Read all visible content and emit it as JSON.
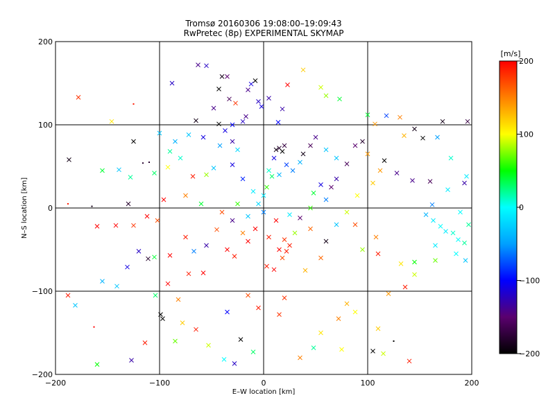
{
  "chart_data": {
    "type": "scatter",
    "title": "Tromsø 20160306 19:08:00–19:09:43",
    "subtitle": "RwPretec (8p) EXPERIMENTAL SKYMAP",
    "xlabel": "E–W location [km]",
    "ylabel": "N–S location [km]",
    "xlim": [
      -200,
      200
    ],
    "ylim": [
      -200,
      200
    ],
    "xticks": [
      -200,
      -100,
      0,
      100,
      200
    ],
    "yticks": [
      -200,
      -100,
      0,
      100,
      200
    ],
    "xtick_labels": [
      "−200",
      "−100",
      "0",
      "100",
      "200"
    ],
    "ytick_labels": [
      "−200",
      "−100",
      "0",
      "100",
      "200"
    ],
    "grid": true,
    "colorbar": {
      "unit_label": "[m/s]",
      "range": [
        -200,
        200
      ],
      "ticks": [
        200,
        100,
        0,
        -100,
        -200
      ],
      "tick_labels": [
        "200",
        "100",
        "0",
        "−100",
        "−200"
      ],
      "colormap": [
        "#000000",
        "#5a006e",
        "#0000ff",
        "#00a0ff",
        "#00ffff",
        "#00ff00",
        "#ffff00",
        "#ff8000",
        "#ff0000"
      ]
    },
    "points": [
      [
        -178,
        133,
        180,
        "x"
      ],
      [
        -146,
        104,
        110,
        "x"
      ],
      [
        -125,
        125,
        190,
        "+"
      ],
      [
        -187,
        58,
        -190,
        "x"
      ],
      [
        -165,
        2,
        -190,
        "+"
      ],
      [
        -188,
        5,
        190,
        "+"
      ],
      [
        -155,
        45,
        40,
        "x"
      ],
      [
        -139,
        46,
        -30,
        "x"
      ],
      [
        -130,
        5,
        -180,
        "x"
      ],
      [
        -128,
        37,
        20,
        "x"
      ],
      [
        -105,
        42,
        30,
        "x"
      ],
      [
        -116,
        54,
        -180,
        "+"
      ],
      [
        -110,
        55,
        -180,
        "+"
      ],
      [
        -92,
        49,
        100,
        "x"
      ],
      [
        -96,
        10,
        200,
        "x"
      ],
      [
        -160,
        -22,
        200,
        "x"
      ],
      [
        -142,
        -21,
        200,
        "x"
      ],
      [
        -125,
        -21,
        180,
        "x"
      ],
      [
        -112,
        -10,
        200,
        "x"
      ],
      [
        -102,
        -15,
        170,
        "x"
      ],
      [
        -120,
        -52,
        -120,
        "x"
      ],
      [
        -111,
        -61,
        -180,
        "x"
      ],
      [
        -105,
        -59,
        40,
        "x"
      ],
      [
        -131,
        -71,
        -110,
        "x"
      ],
      [
        -155,
        -88,
        -40,
        "x"
      ],
      [
        -141,
        -94,
        -30,
        "x"
      ],
      [
        -188,
        -105,
        190,
        "x"
      ],
      [
        -181,
        -117,
        -30,
        "x"
      ],
      [
        -163,
        -143,
        200,
        "+"
      ],
      [
        -114,
        -162,
        190,
        "x"
      ],
      [
        -127,
        -183,
        -130,
        "x"
      ],
      [
        -160,
        -188,
        50,
        "x"
      ],
      [
        -104,
        -105,
        30,
        "x"
      ],
      [
        -99,
        -128,
        -200,
        "x"
      ],
      [
        -97,
        -133,
        -200,
        "x"
      ],
      [
        -92,
        -91,
        200,
        "x"
      ],
      [
        -82,
        -110,
        150,
        "x"
      ],
      [
        -90,
        -57,
        200,
        "x"
      ],
      [
        -67,
        -52,
        -60,
        "x"
      ],
      [
        -75,
        -35,
        190,
        "x"
      ],
      [
        -72,
        -79,
        190,
        "x"
      ],
      [
        -55,
        -45,
        -130,
        "x"
      ],
      [
        -45,
        -26,
        170,
        "x"
      ],
      [
        -58,
        -78,
        200,
        "x"
      ],
      [
        -63,
        172,
        -140,
        "x"
      ],
      [
        -55,
        171,
        -120,
        "x"
      ],
      [
        -88,
        150,
        -120,
        "x"
      ],
      [
        -40,
        158,
        -190,
        "x"
      ],
      [
        -35,
        158,
        -150,
        "x"
      ],
      [
        -43,
        143,
        -200,
        "x"
      ],
      [
        -33,
        131,
        -160,
        "x"
      ],
      [
        -27,
        126,
        180,
        "x"
      ],
      [
        -15,
        142,
        -140,
        "x"
      ],
      [
        -12,
        149,
        -110,
        "x"
      ],
      [
        -8,
        153,
        -200,
        "x"
      ],
      [
        -5,
        128,
        -120,
        "x"
      ],
      [
        -2,
        122,
        -110,
        "x"
      ],
      [
        5,
        132,
        -130,
        "x"
      ],
      [
        -17,
        110,
        -140,
        "x"
      ],
      [
        -20,
        104,
        -120,
        "x"
      ],
      [
        -30,
        100,
        -100,
        "x"
      ],
      [
        -37,
        93,
        -110,
        "x"
      ],
      [
        -43,
        101,
        -200,
        "x"
      ],
      [
        14,
        103,
        -100,
        "x"
      ],
      [
        18,
        119,
        -130,
        "x"
      ],
      [
        23,
        148,
        200,
        "x"
      ],
      [
        38,
        166,
        120,
        "x"
      ],
      [
        55,
        145,
        90,
        "x"
      ],
      [
        60,
        135,
        80,
        "x"
      ],
      [
        73,
        131,
        40,
        "x"
      ],
      [
        100,
        112,
        40,
        "x"
      ],
      [
        118,
        111,
        -80,
        "x"
      ],
      [
        107,
        101,
        140,
        "x"
      ],
      [
        131,
        109,
        150,
        "x"
      ],
      [
        135,
        87,
        130,
        "x"
      ],
      [
        153,
        84,
        -200,
        "x"
      ],
      [
        145,
        95,
        -190,
        "x"
      ],
      [
        172,
        104,
        -190,
        "x"
      ],
      [
        167,
        85,
        -50,
        "x"
      ],
      [
        180,
        60,
        10,
        "x"
      ],
      [
        195,
        38,
        -10,
        "x"
      ],
      [
        196,
        104,
        -170,
        "x"
      ],
      [
        116,
        57,
        -200,
        "x"
      ],
      [
        128,
        42,
        -140,
        "x"
      ],
      [
        143,
        33,
        -140,
        "x"
      ],
      [
        160,
        32,
        -160,
        "x"
      ],
      [
        162,
        4,
        -60,
        "x"
      ],
      [
        177,
        22,
        -10,
        "x"
      ],
      [
        189,
        -5,
        0,
        "x"
      ],
      [
        193,
        30,
        -130,
        "x"
      ],
      [
        156,
        -8,
        -40,
        "x"
      ],
      [
        163,
        -15,
        -10,
        "x"
      ],
      [
        170,
        -22,
        0,
        "x"
      ],
      [
        175,
        -28,
        -10,
        "x"
      ],
      [
        182,
        -30,
        10,
        "x"
      ],
      [
        187,
        -38,
        0,
        "x"
      ],
      [
        193,
        -42,
        20,
        "x"
      ],
      [
        197,
        -20,
        20,
        "x"
      ],
      [
        165,
        -45,
        -10,
        "x"
      ],
      [
        185,
        -55,
        0,
        "x"
      ],
      [
        194,
        -63,
        -30,
        "x"
      ],
      [
        165,
        -63,
        70,
        "x"
      ],
      [
        145,
        -65,
        50,
        "x"
      ],
      [
        132,
        -67,
        110,
        "x"
      ],
      [
        145,
        -80,
        90,
        "x"
      ],
      [
        136,
        -95,
        190,
        "x"
      ],
      [
        120,
        -103,
        140,
        "x"
      ],
      [
        140,
        -184,
        190,
        "x"
      ],
      [
        110,
        -145,
        120,
        "x"
      ],
      [
        105,
        -172,
        -200,
        "x"
      ],
      [
        115,
        -175,
        90,
        "x"
      ],
      [
        125,
        -160,
        -200,
        "+"
      ],
      [
        88,
        -125,
        100,
        "x"
      ],
      [
        80,
        -115,
        130,
        "x"
      ],
      [
        72,
        -133,
        150,
        "x"
      ],
      [
        75,
        -170,
        100,
        "x"
      ],
      [
        55,
        -150,
        110,
        "x"
      ],
      [
        48,
        -168,
        20,
        "x"
      ],
      [
        35,
        -180,
        150,
        "x"
      ],
      [
        -10,
        -173,
        30,
        "x"
      ],
      [
        -28,
        -187,
        -120,
        "x"
      ],
      [
        -38,
        -182,
        0,
        "x"
      ],
      [
        -53,
        -165,
        90,
        "x"
      ],
      [
        -22,
        -158,
        -200,
        "x"
      ],
      [
        -65,
        -146,
        190,
        "x"
      ],
      [
        -78,
        -138,
        120,
        "x"
      ],
      [
        -85,
        -160,
        70,
        "x"
      ],
      [
        -35,
        -125,
        -100,
        "x"
      ],
      [
        -5,
        -120,
        190,
        "x"
      ],
      [
        15,
        -128,
        180,
        "x"
      ],
      [
        -15,
        -105,
        170,
        "x"
      ],
      [
        20,
        -108,
        180,
        "x"
      ],
      [
        10,
        -74,
        200,
        "x"
      ],
      [
        3,
        -70,
        190,
        "x"
      ],
      [
        18,
        -60,
        170,
        "x"
      ],
      [
        22,
        -52,
        190,
        "x"
      ],
      [
        15,
        -50,
        200,
        "x"
      ],
      [
        25,
        -45,
        190,
        "x"
      ],
      [
        20,
        -38,
        180,
        "x"
      ],
      [
        30,
        -30,
        80,
        "x"
      ],
      [
        -15,
        -40,
        200,
        "x"
      ],
      [
        -28,
        -58,
        190,
        "x"
      ],
      [
        -35,
        -50,
        200,
        "x"
      ],
      [
        -20,
        -30,
        150,
        "x"
      ],
      [
        -8,
        -25,
        200,
        "x"
      ],
      [
        5,
        -35,
        190,
        "x"
      ],
      [
        40,
        -75,
        130,
        "x"
      ],
      [
        55,
        -60,
        160,
        "x"
      ],
      [
        60,
        -40,
        -190,
        "x"
      ],
      [
        88,
        -20,
        170,
        "x"
      ],
      [
        95,
        -50,
        80,
        "x"
      ],
      [
        108,
        -35,
        150,
        "x"
      ],
      [
        110,
        -55,
        190,
        "x"
      ],
      [
        70,
        -20,
        -30,
        "x"
      ],
      [
        80,
        -5,
        90,
        "x"
      ],
      [
        90,
        15,
        100,
        "x"
      ],
      [
        105,
        30,
        120,
        "x"
      ],
      [
        112,
        45,
        140,
        "x"
      ],
      [
        100,
        65,
        140,
        "x"
      ],
      [
        95,
        80,
        -180,
        "x"
      ],
      [
        88,
        75,
        -150,
        "x"
      ],
      [
        80,
        53,
        -160,
        "x"
      ],
      [
        70,
        35,
        -130,
        "x"
      ],
      [
        65,
        25,
        -150,
        "x"
      ],
      [
        55,
        28,
        -110,
        "x"
      ],
      [
        60,
        10,
        -60,
        "x"
      ],
      [
        45,
        0,
        60,
        "x"
      ],
      [
        48,
        18,
        40,
        "x"
      ],
      [
        12,
        70,
        -190,
        "x"
      ],
      [
        15,
        72,
        -180,
        "x"
      ],
      [
        20,
        75,
        -170,
        "x"
      ],
      [
        18,
        68,
        -200,
        "x"
      ],
      [
        10,
        60,
        -110,
        "x"
      ],
      [
        5,
        45,
        10,
        "x"
      ],
      [
        8,
        38,
        30,
        "x"
      ],
      [
        15,
        40,
        -40,
        "x"
      ],
      [
        22,
        52,
        -80,
        "x"
      ],
      [
        28,
        45,
        -60,
        "x"
      ],
      [
        35,
        55,
        -40,
        "x"
      ],
      [
        38,
        65,
        -190,
        "x"
      ],
      [
        45,
        75,
        -160,
        "x"
      ],
      [
        50,
        85,
        -140,
        "x"
      ],
      [
        60,
        70,
        -30,
        "x"
      ],
      [
        70,
        60,
        -30,
        "x"
      ],
      [
        -5,
        5,
        -20,
        "x"
      ],
      [
        0,
        15,
        -10,
        "x"
      ],
      [
        3,
        25,
        60,
        "x"
      ],
      [
        -10,
        20,
        -10,
        "x"
      ],
      [
        -20,
        35,
        -90,
        "x"
      ],
      [
        -30,
        52,
        -110,
        "x"
      ],
      [
        -48,
        48,
        -30,
        "x"
      ],
      [
        -55,
        40,
        80,
        "x"
      ],
      [
        -68,
        38,
        190,
        "x"
      ],
      [
        -75,
        15,
        150,
        "x"
      ],
      [
        -60,
        5,
        40,
        "x"
      ],
      [
        -40,
        -5,
        170,
        "x"
      ],
      [
        -25,
        5,
        60,
        "x"
      ],
      [
        -30,
        -15,
        -140,
        "x"
      ],
      [
        -15,
        -10,
        -30,
        "x"
      ],
      [
        0,
        -5,
        -60,
        "x"
      ],
      [
        12,
        -15,
        200,
        "x"
      ],
      [
        25,
        -8,
        -10,
        "x"
      ],
      [
        35,
        -12,
        -150,
        "x"
      ],
      [
        45,
        -25,
        160,
        "x"
      ],
      [
        -85,
        80,
        -40,
        "x"
      ],
      [
        -90,
        68,
        20,
        "x"
      ],
      [
        -80,
        60,
        10,
        "x"
      ],
      [
        -100,
        90,
        -30,
        "x"
      ],
      [
        -125,
        80,
        -200,
        "x"
      ],
      [
        -48,
        120,
        -140,
        "x"
      ],
      [
        -65,
        105,
        -190,
        "x"
      ],
      [
        -72,
        88,
        -30,
        "x"
      ],
      [
        -58,
        85,
        -110,
        "x"
      ],
      [
        -42,
        75,
        -50,
        "x"
      ],
      [
        -30,
        80,
        -130,
        "x"
      ],
      [
        -25,
        70,
        -20,
        "x"
      ]
    ]
  }
}
